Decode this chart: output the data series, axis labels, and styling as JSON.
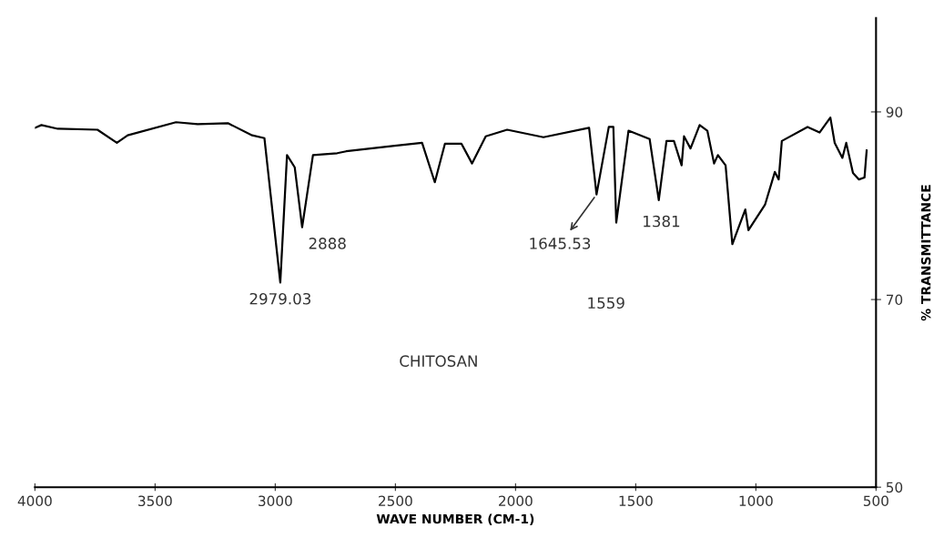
{
  "chart_data": {
    "type": "line",
    "xlabel": "WAVE NUMBER (CM-1)",
    "ylabel": "% TRANSMITTANCE",
    "xlim": [
      4000,
      500
    ],
    "xticks": [
      4000,
      3500,
      3000,
      2500,
      2000,
      1500,
      1000,
      500
    ],
    "ylim": [
      50,
      100
    ],
    "yticks": [
      50,
      70,
      90
    ],
    "grid": false,
    "legend": false,
    "marker": "none",
    "line_style": "solid",
    "series": [
      {
        "color": "#000000",
        "x": [
          4000,
          3973,
          3905,
          3740,
          3659,
          3614,
          3413,
          3323,
          3197,
          3096,
          3045,
          2979,
          2951,
          2919,
          2888,
          2843,
          2742,
          2705,
          2503,
          2389,
          2336,
          2294,
          2225,
          2181,
          2124,
          2035,
          1884,
          1694,
          1663,
          1612,
          1593,
          1581,
          1530,
          1442,
          1404,
          1372,
          1341,
          1309,
          1299,
          1272,
          1234,
          1202,
          1174,
          1158,
          1126,
          1098,
          1044,
          1031,
          962,
          921,
          905,
          892,
          785,
          735,
          690,
          672,
          640,
          624,
          596,
          571,
          548,
          539
        ],
        "values": [
          88.3,
          88.6,
          88.2,
          88.1,
          86.7,
          87.5,
          88.9,
          88.7,
          88.8,
          87.5,
          87.2,
          71.8,
          85.4,
          84.1,
          77.7,
          85.4,
          85.6,
          85.8,
          86.4,
          86.7,
          82.5,
          86.6,
          86.6,
          84.5,
          87.4,
          88.1,
          87.3,
          88.3,
          81.2,
          88.4,
          88.4,
          78.2,
          88.0,
          87.1,
          80.6,
          86.9,
          86.9,
          84.3,
          87.4,
          86.1,
          88.6,
          88.0,
          84.5,
          85.4,
          84.3,
          75.9,
          79.6,
          77.4,
          80.1,
          83.6,
          82.8,
          86.9,
          88.4,
          87.8,
          89.4,
          86.7,
          85.1,
          86.7,
          83.5,
          82.8,
          83.0,
          85.9
        ]
      }
    ],
    "annotations": [
      {
        "text": "2979.03",
        "x": 2979,
        "y": 71.8
      },
      {
        "text": "2888",
        "x": 2888,
        "y": 77.7
      },
      {
        "text": "1645.53",
        "x": 1663,
        "y": 81.2
      },
      {
        "text": "1381",
        "x": 1404,
        "y": 80.6
      },
      "1559",
      "CHITOSAN"
    ]
  }
}
